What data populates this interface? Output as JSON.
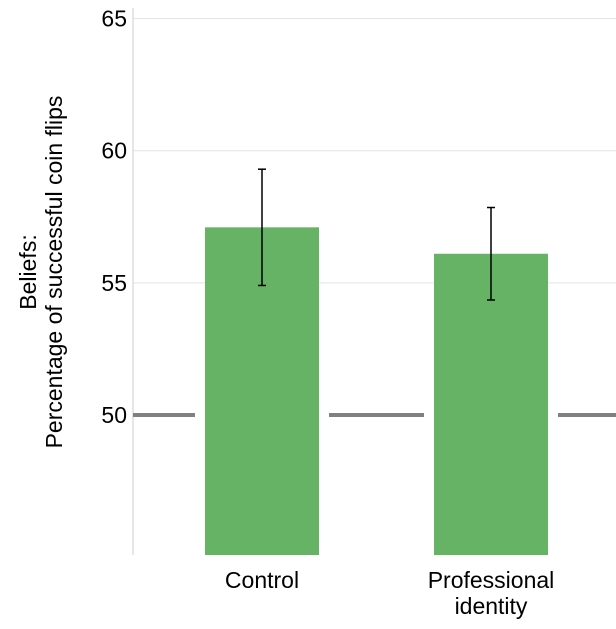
{
  "chart_data": {
    "type": "bar",
    "categories": [
      "Control",
      "Professional identity"
    ],
    "category_label_lines": [
      [
        "Control"
      ],
      [
        "Professional",
        "identity"
      ]
    ],
    "values": [
      57.1,
      56.1
    ],
    "error_low": [
      54.9,
      54.35
    ],
    "error_high": [
      59.3,
      57.85
    ],
    "ylabel_lines": [
      "Beliefs:",
      "Percentage of successful coin flips"
    ],
    "xlabel": "",
    "title": "",
    "ylim": [
      44.7,
      65.4
    ],
    "yticks": [
      50,
      55,
      60,
      65
    ],
    "bar_base": 44.7,
    "reference_line": 50,
    "grid": true,
    "colors": {
      "bar": "#66b366",
      "grid": "#e3e3e3",
      "reference_line": "#808080",
      "axis": "#cccccc",
      "error_bar": "#000000"
    }
  }
}
